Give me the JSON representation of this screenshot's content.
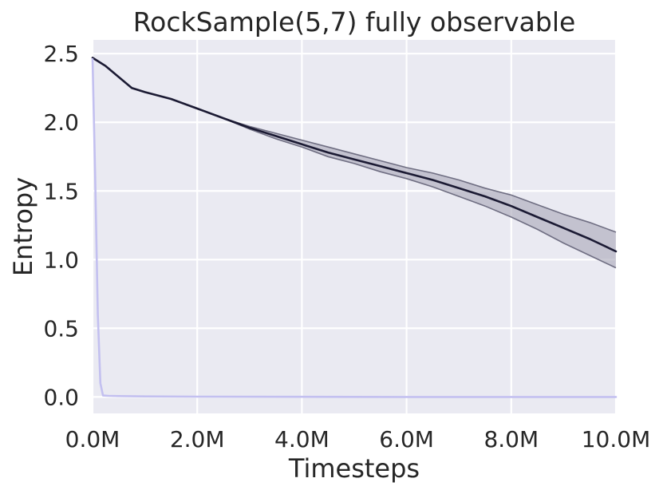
{
  "chart_data": {
    "type": "line",
    "title": "RockSample(5,7) fully observable",
    "xlabel": "Timesteps",
    "ylabel": "Entropy",
    "xlim": [
      0,
      10000000
    ],
    "ylim": [
      -0.12,
      2.6
    ],
    "xticks": [
      0,
      2000000,
      4000000,
      6000000,
      8000000,
      10000000
    ],
    "xtick_labels": [
      "0.0M",
      "2.0M",
      "4.0M",
      "6.0M",
      "8.0M",
      "10.0M"
    ],
    "yticks": [
      0.0,
      0.5,
      1.0,
      1.5,
      2.0,
      2.5
    ],
    "ytick_labels": [
      "0.0",
      "0.5",
      "1.0",
      "1.5",
      "2.0",
      "2.5"
    ],
    "grid": true,
    "background_color": "#eaeaf2",
    "series": [
      {
        "color": "#1b1a33",
        "band_color": "#a8a6b8",
        "band_edge_color": "#6f6e82",
        "x": [
          0,
          250000,
          500000,
          750000,
          1000000,
          1500000,
          2000000,
          2500000,
          3000000,
          3500000,
          4000000,
          4500000,
          5000000,
          5500000,
          6000000,
          6500000,
          7000000,
          7500000,
          8000000,
          8500000,
          9000000,
          9500000,
          10000000
        ],
        "y": [
          2.47,
          2.41,
          2.33,
          2.25,
          2.22,
          2.17,
          2.1,
          2.03,
          1.96,
          1.9,
          1.84,
          1.78,
          1.73,
          1.68,
          1.63,
          1.58,
          1.52,
          1.46,
          1.39,
          1.31,
          1.23,
          1.15,
          1.06
        ],
        "lower": [
          2.47,
          2.41,
          2.33,
          2.25,
          2.22,
          2.17,
          2.1,
          2.03,
          1.95,
          1.88,
          1.82,
          1.75,
          1.7,
          1.64,
          1.59,
          1.53,
          1.46,
          1.39,
          1.31,
          1.22,
          1.12,
          1.03,
          0.94
        ],
        "upper": [
          2.47,
          2.41,
          2.33,
          2.25,
          2.22,
          2.17,
          2.1,
          2.03,
          1.97,
          1.92,
          1.87,
          1.82,
          1.77,
          1.72,
          1.67,
          1.63,
          1.58,
          1.52,
          1.47,
          1.4,
          1.33,
          1.27,
          1.2
        ]
      },
      {
        "color": "#c3c0f0",
        "x": [
          0,
          50000,
          100000,
          150000,
          200000,
          300000,
          500000,
          1000000,
          2000000,
          4000000,
          6000000,
          8000000,
          10000000
        ],
        "y": [
          2.46,
          1.6,
          0.6,
          0.1,
          0.01,
          0.008,
          0.006,
          0.004,
          0.002,
          0.001,
          0.0,
          0.0,
          0.0
        ]
      }
    ]
  }
}
